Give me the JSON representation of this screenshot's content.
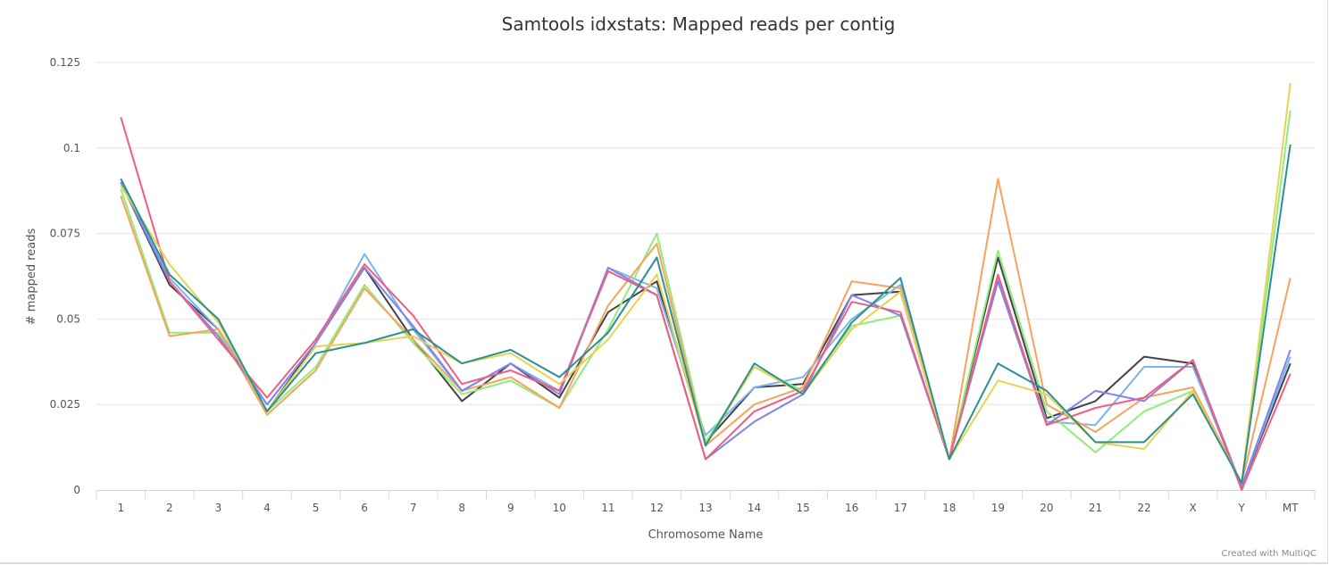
{
  "chart_data": {
    "type": "line",
    "title": "Samtools idxstats: Mapped reads per contig",
    "xlabel": "Chromosome Name",
    "ylabel": "# mapped reads",
    "ylim": [
      0,
      0.125
    ],
    "yticks": [
      "0",
      "0.025",
      "0.05",
      "0.075",
      "0.1",
      "0.125"
    ],
    "grid": true,
    "categories": [
      "1",
      "2",
      "3",
      "4",
      "5",
      "6",
      "7",
      "8",
      "9",
      "10",
      "11",
      "12",
      "13",
      "14",
      "15",
      "16",
      "17",
      "18",
      "19",
      "20",
      "21",
      "22",
      "X",
      "Y",
      "MT"
    ],
    "series": [
      {
        "color": "#434348",
        "values": [
          0.09,
          0.06,
          0.047,
          0.023,
          0.043,
          0.065,
          0.044,
          0.026,
          0.037,
          0.027,
          0.052,
          0.061,
          0.014,
          0.03,
          0.031,
          0.057,
          0.058,
          0.009,
          0.068,
          0.021,
          0.026,
          0.039,
          0.037,
          0.001,
          0.037
        ]
      },
      {
        "color": "#7cb5ec",
        "values": [
          0.09,
          0.062,
          0.047,
          0.025,
          0.043,
          0.069,
          0.047,
          0.029,
          0.037,
          0.029,
          0.065,
          0.059,
          0.016,
          0.03,
          0.033,
          0.05,
          0.06,
          0.009,
          0.062,
          0.02,
          0.019,
          0.036,
          0.036,
          0.001,
          0.039
        ]
      },
      {
        "color": "#90ed7d",
        "values": [
          0.088,
          0.046,
          0.046,
          0.023,
          0.036,
          0.06,
          0.043,
          0.028,
          0.032,
          0.024,
          0.047,
          0.075,
          0.014,
          0.036,
          0.029,
          0.048,
          0.051,
          0.009,
          0.07,
          0.023,
          0.011,
          0.023,
          0.029,
          0.002,
          0.111
        ]
      },
      {
        "color": "#f7a35c",
        "values": [
          0.086,
          0.045,
          0.047,
          0.022,
          0.035,
          0.059,
          0.044,
          0.029,
          0.033,
          0.024,
          0.054,
          0.072,
          0.013,
          0.025,
          0.03,
          0.061,
          0.059,
          0.009,
          0.091,
          0.025,
          0.017,
          0.027,
          0.03,
          0.002,
          0.062
        ]
      },
      {
        "color": "#8085e9",
        "values": [
          0.09,
          0.061,
          0.045,
          0.025,
          0.043,
          0.065,
          0.048,
          0.029,
          0.037,
          0.028,
          0.065,
          0.057,
          0.009,
          0.02,
          0.028,
          0.057,
          0.051,
          0.009,
          0.061,
          0.019,
          0.029,
          0.026,
          0.038,
          0.001,
          0.041
        ]
      },
      {
        "color": "#f15c80",
        "values": [
          0.109,
          0.061,
          0.044,
          0.027,
          0.044,
          0.066,
          0.051,
          0.031,
          0.035,
          0.029,
          0.064,
          0.057,
          0.009,
          0.023,
          0.029,
          0.055,
          0.052,
          0.009,
          0.063,
          0.019,
          0.024,
          0.027,
          0.038,
          0.0,
          0.034
        ]
      },
      {
        "color": "#e4d354",
        "values": [
          0.089,
          0.066,
          0.049,
          0.023,
          0.042,
          0.043,
          0.045,
          0.037,
          0.04,
          0.031,
          0.044,
          0.063,
          0.013,
          0.036,
          0.028,
          0.047,
          0.058,
          0.009,
          0.032,
          0.028,
          0.014,
          0.012,
          0.029,
          0.002,
          0.119
        ]
      },
      {
        "color": "#2b908f",
        "values": [
          0.091,
          0.063,
          0.05,
          0.023,
          0.04,
          0.043,
          0.047,
          0.037,
          0.041,
          0.033,
          0.046,
          0.068,
          0.013,
          0.037,
          0.028,
          0.049,
          0.062,
          0.009,
          0.037,
          0.029,
          0.014,
          0.014,
          0.028,
          0.002,
          0.101
        ]
      }
    ]
  },
  "credit": "Created with MultiQC"
}
